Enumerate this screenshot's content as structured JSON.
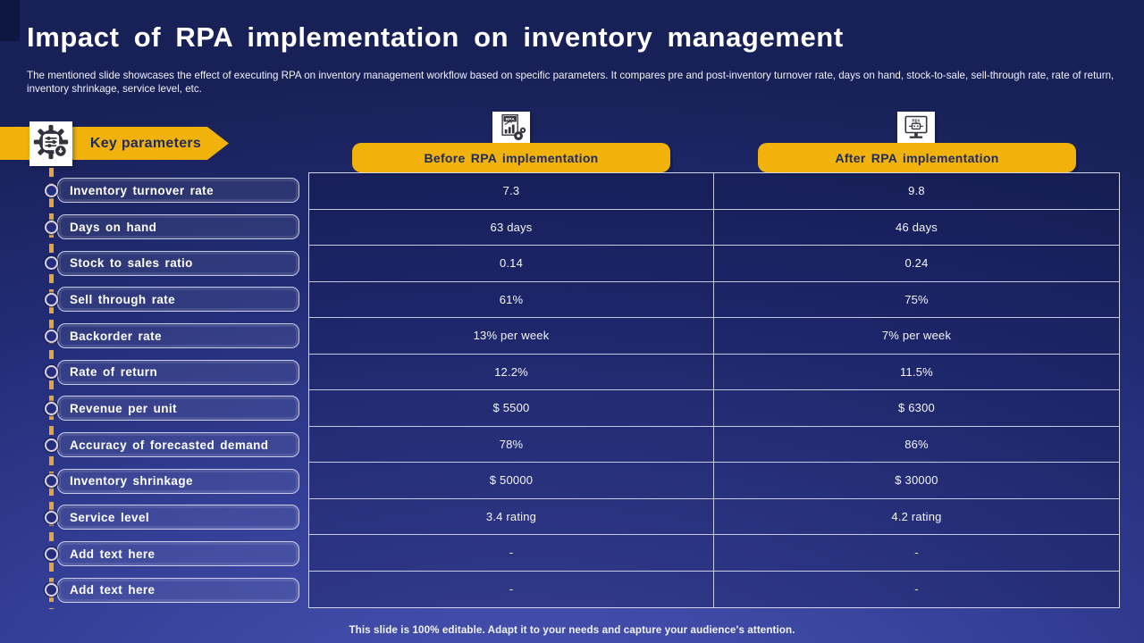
{
  "slide": {
    "title": "Impact of RPA implementation on inventory management",
    "subtitle": "The mentioned slide showcases the effect of executing RPA on inventory management workflow based on specific parameters. It compares pre and post-inventory turnover rate, days on hand, stock-to-sale, sell-through rate, rate of return, inventory shrinkage, service level, etc.",
    "footer": "This slide is 100% editable. Adapt it to your needs and capture your audience's attention."
  },
  "key_parameters": {
    "label": "Key parameters",
    "icon": "gear-sliders-icon"
  },
  "columns": [
    {
      "label": "Before RPA implementation",
      "icon": "rpa-report-chart-icon"
    },
    {
      "label": "After RPA implementation",
      "icon": "rpa-robot-monitor-icon"
    }
  ],
  "rows": [
    {
      "parameter": "Inventory turnover rate",
      "before": "7.3",
      "after": "9.8"
    },
    {
      "parameter": "Days on hand",
      "before": "63 days",
      "after": "46 days"
    },
    {
      "parameter": "Stock to sales ratio",
      "before": "0.14",
      "after": "0.24"
    },
    {
      "parameter": "Sell through rate",
      "before": "61%",
      "after": "75%"
    },
    {
      "parameter": "Backorder rate",
      "before": "13% per week",
      "after": "7% per week"
    },
    {
      "parameter": "Rate of return",
      "before": "12.2%",
      "after": "11.5%"
    },
    {
      "parameter": "Revenue per unit",
      "before": "$ 5500",
      "after": "$ 6300"
    },
    {
      "parameter": "Accuracy of forecasted demand",
      "before": "78%",
      "after": "86%"
    },
    {
      "parameter": "Inventory shrinkage",
      "before": "$ 50000",
      "after": "$ 30000"
    },
    {
      "parameter": "Service level",
      "before": "3.4 rating",
      "after": "4.2 rating"
    },
    {
      "parameter": "Add text here",
      "before": "-",
      "after": "-"
    },
    {
      "parameter": "Add text here",
      "before": "-",
      "after": "-"
    }
  ],
  "colors": {
    "accent_yellow": "#F1B20C",
    "header_text_navy": "#1F2A5E",
    "background_top": "#182157",
    "background_bottom": "#4A55B5",
    "table_border": "#E2E6F8",
    "dashed_line_orange": "#E6A33C",
    "icon_dark": "#33333D"
  }
}
